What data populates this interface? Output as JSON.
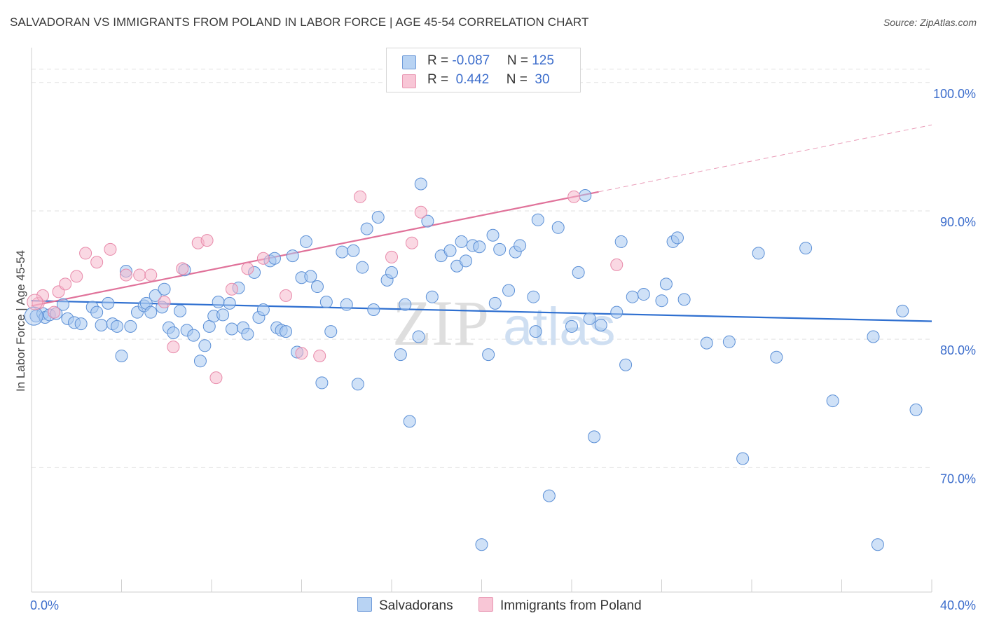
{
  "title": "SALVADORAN VS IMMIGRANTS FROM POLAND IN LABOR FORCE | AGE 45-54 CORRELATION CHART",
  "source": "Source: ZipAtlas.com",
  "watermark": {
    "zip": "ZIP",
    "atlas": "atlas"
  },
  "legend": {
    "rows": [
      {
        "r_label": "R = ",
        "r_value": "-0.087",
        "n_label": "N = ",
        "n_value": "125"
      },
      {
        "r_label": "R = ",
        "r_value": " 0.442",
        "n_label": "N = ",
        "n_value": " 30"
      }
    ]
  },
  "bottom_legend": [
    "Salvadorans",
    "Immigrants from Poland"
  ],
  "colors": {
    "blue_fill": "#a8c8f0",
    "blue_stroke": "#5b8fd6",
    "blue_line": "#2e6fd0",
    "pink_fill": "#f5b8cc",
    "pink_stroke": "#e88aaa",
    "pink_line": "#e0729a",
    "axis_text": "#3d6ecc",
    "grid": "#e2e2e2"
  },
  "chart_data": {
    "type": "scatter",
    "title": "SALVADORAN VS IMMIGRANTS FROM POLAND IN LABOR FORCE | AGE 45-54 CORRELATION CHART",
    "xlabel": "",
    "ylabel": "In Labor Force | Age 45-54",
    "xlim": [
      0,
      40
    ],
    "ylim": [
      60.3,
      102.5
    ],
    "x_tick_labels": [
      "0.0%",
      "40.0%"
    ],
    "y_ticks": [
      70,
      80,
      90,
      100
    ],
    "y_tick_labels": [
      "70.0%",
      "80.0%",
      "90.0%",
      "100.0%"
    ],
    "grid": true,
    "legend_position": "top-center",
    "series": [
      {
        "name": "Salvadorans",
        "r": -0.087,
        "n": 125,
        "trend": {
          "x": [
            0,
            40
          ],
          "y": [
            83.0,
            81.4
          ]
        },
        "points": [
          [
            0.2,
            81.8
          ],
          [
            0.5,
            82.0
          ],
          [
            0.6,
            81.7
          ],
          [
            0.8,
            81.9
          ],
          [
            1.1,
            82.0
          ],
          [
            1.4,
            82.7
          ],
          [
            1.6,
            81.6
          ],
          [
            1.9,
            81.3
          ],
          [
            2.2,
            81.2
          ],
          [
            2.7,
            82.5
          ],
          [
            2.9,
            82.1
          ],
          [
            3.1,
            81.1
          ],
          [
            3.4,
            82.8
          ],
          [
            3.6,
            81.2
          ],
          [
            3.8,
            81.0
          ],
          [
            4.0,
            78.7
          ],
          [
            4.2,
            85.3
          ],
          [
            4.4,
            81.0
          ],
          [
            4.7,
            82.1
          ],
          [
            5.0,
            82.6
          ],
          [
            5.1,
            82.8
          ],
          [
            5.3,
            82.1
          ],
          [
            5.5,
            83.4
          ],
          [
            5.8,
            82.5
          ],
          [
            5.9,
            83.9
          ],
          [
            6.1,
            80.9
          ],
          [
            6.3,
            80.5
          ],
          [
            6.6,
            82.2
          ],
          [
            6.8,
            85.4
          ],
          [
            6.9,
            80.7
          ],
          [
            7.2,
            80.3
          ],
          [
            7.5,
            78.3
          ],
          [
            7.7,
            79.5
          ],
          [
            7.9,
            81.0
          ],
          [
            8.1,
            81.8
          ],
          [
            8.3,
            82.9
          ],
          [
            8.5,
            81.9
          ],
          [
            8.8,
            82.8
          ],
          [
            8.9,
            80.8
          ],
          [
            9.2,
            84.0
          ],
          [
            9.4,
            80.9
          ],
          [
            9.6,
            80.4
          ],
          [
            9.9,
            85.2
          ],
          [
            10.1,
            81.7
          ],
          [
            10.3,
            82.3
          ],
          [
            10.6,
            86.1
          ],
          [
            10.8,
            86.3
          ],
          [
            10.9,
            80.9
          ],
          [
            11.1,
            80.7
          ],
          [
            11.3,
            80.6
          ],
          [
            11.6,
            86.5
          ],
          [
            11.8,
            79.0
          ],
          [
            12.0,
            84.8
          ],
          [
            12.2,
            87.6
          ],
          [
            12.4,
            84.9
          ],
          [
            12.7,
            84.1
          ],
          [
            12.9,
            76.6
          ],
          [
            13.1,
            82.9
          ],
          [
            13.3,
            80.6
          ],
          [
            13.8,
            86.8
          ],
          [
            14.0,
            82.7
          ],
          [
            14.3,
            86.9
          ],
          [
            14.5,
            76.5
          ],
          [
            14.7,
            85.6
          ],
          [
            14.9,
            88.6
          ],
          [
            15.2,
            82.3
          ],
          [
            15.4,
            89.5
          ],
          [
            15.8,
            84.6
          ],
          [
            16.0,
            85.2
          ],
          [
            16.4,
            78.8
          ],
          [
            16.6,
            82.7
          ],
          [
            16.8,
            73.6
          ],
          [
            17.2,
            80.2
          ],
          [
            17.3,
            92.1
          ],
          [
            17.6,
            89.2
          ],
          [
            17.8,
            83.3
          ],
          [
            18.2,
            86.5
          ],
          [
            18.6,
            86.9
          ],
          [
            18.9,
            85.7
          ],
          [
            19.1,
            87.6
          ],
          [
            19.3,
            86.1
          ],
          [
            19.6,
            87.3
          ],
          [
            19.9,
            87.2
          ],
          [
            20.0,
            64.0
          ],
          [
            20.3,
            78.8
          ],
          [
            20.5,
            88.1
          ],
          [
            20.6,
            82.8
          ],
          [
            20.8,
            87.0
          ],
          [
            21.2,
            83.8
          ],
          [
            21.5,
            86.8
          ],
          [
            21.7,
            87.3
          ],
          [
            22.3,
            83.3
          ],
          [
            22.4,
            80.6
          ],
          [
            22.5,
            89.3
          ],
          [
            23.0,
            67.8
          ],
          [
            23.4,
            88.7
          ],
          [
            24.0,
            81.0
          ],
          [
            24.3,
            85.2
          ],
          [
            24.6,
            91.2
          ],
          [
            24.8,
            81.6
          ],
          [
            25.0,
            72.4
          ],
          [
            25.3,
            81.1
          ],
          [
            26.0,
            82.1
          ],
          [
            26.2,
            87.6
          ],
          [
            26.4,
            78.0
          ],
          [
            26.7,
            83.3
          ],
          [
            27.2,
            83.5
          ],
          [
            28.0,
            83.0
          ],
          [
            28.2,
            84.3
          ],
          [
            28.5,
            87.6
          ],
          [
            28.7,
            87.9
          ],
          [
            29.0,
            83.1
          ],
          [
            30.0,
            79.7
          ],
          [
            31.0,
            79.8
          ],
          [
            31.6,
            70.7
          ],
          [
            32.3,
            86.7
          ],
          [
            33.1,
            78.6
          ],
          [
            34.4,
            87.1
          ],
          [
            35.6,
            75.2
          ],
          [
            37.4,
            80.2
          ],
          [
            37.6,
            64.0
          ],
          [
            39.3,
            74.5
          ],
          [
            38.7,
            82.2
          ]
        ]
      },
      {
        "name": "Immigrants from Poland",
        "r": 0.442,
        "n": 30,
        "trend": {
          "x": [
            0,
            40
          ],
          "y": [
            82.6,
            96.7
          ]
        },
        "points": [
          [
            0.3,
            82.8
          ],
          [
            0.5,
            83.4
          ],
          [
            1.0,
            82.1
          ],
          [
            1.2,
            83.7
          ],
          [
            1.5,
            84.3
          ],
          [
            2.0,
            84.9
          ],
          [
            2.4,
            86.7
          ],
          [
            2.9,
            86.0
          ],
          [
            3.5,
            87.0
          ],
          [
            4.2,
            85.0
          ],
          [
            4.8,
            85.0
          ],
          [
            5.3,
            85.0
          ],
          [
            5.9,
            82.9
          ],
          [
            6.3,
            79.4
          ],
          [
            6.7,
            85.5
          ],
          [
            7.4,
            87.5
          ],
          [
            7.8,
            87.7
          ],
          [
            8.2,
            77.0
          ],
          [
            8.9,
            83.9
          ],
          [
            9.6,
            85.5
          ],
          [
            10.3,
            86.3
          ],
          [
            11.3,
            83.4
          ],
          [
            12.0,
            78.9
          ],
          [
            12.8,
            78.7
          ],
          [
            14.6,
            91.1
          ],
          [
            16.0,
            86.4
          ],
          [
            16.9,
            87.5
          ],
          [
            17.3,
            89.9
          ],
          [
            24.1,
            91.1
          ],
          [
            26.0,
            85.8
          ]
        ]
      }
    ]
  }
}
